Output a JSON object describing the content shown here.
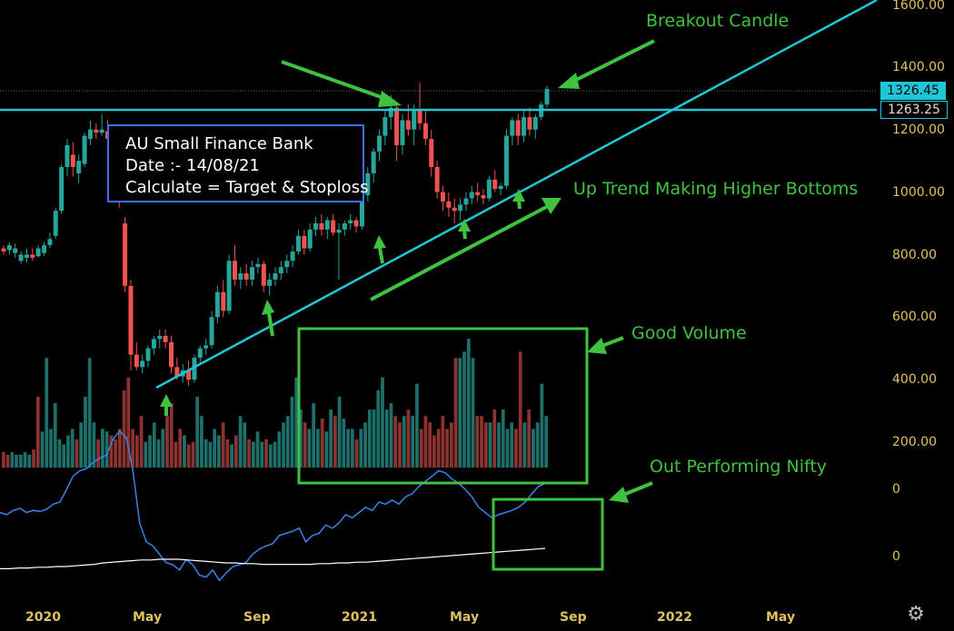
{
  "chart_data": {
    "type": "candlestick",
    "title": "AU Small Finance Bank",
    "date_label": "Date :- 14/08/21",
    "calc_label": "Calculate = Target & Stoploss",
    "y_ticks": [
      "1600.00",
      "1400.00",
      "1200.00",
      "1000.00",
      "800.00",
      "600.00",
      "400.00",
      "200.00"
    ],
    "indicator_ticks": [
      "0",
      "0"
    ],
    "x_ticks": [
      "2020",
      "May",
      "Sep",
      "2021",
      "May",
      "Sep",
      "2022",
      "May"
    ],
    "last_price": "1326.45",
    "breakout_level": "1263.25",
    "annotations": {
      "breakout": "Breakout Candle",
      "uptrend": "Up Trend Making Higher Bottoms",
      "volume": "Good Volume",
      "outperform": "Out Performing Nifty"
    },
    "colors": {
      "up": "#26a69a",
      "down": "#ef5350",
      "trendline": "#1fc6d6",
      "annotation": "#3fc23f",
      "box_border": "#3a6ff0",
      "rs_line": "#3a82e8",
      "ma_line": "#ffffff"
    },
    "candles": [
      [
        820,
        830,
        800,
        810
      ],
      [
        815,
        840,
        800,
        830
      ],
      [
        805,
        835,
        790,
        820
      ],
      [
        780,
        810,
        770,
        800
      ],
      [
        790,
        820,
        775,
        800
      ],
      [
        800,
        820,
        780,
        790
      ],
      [
        795,
        830,
        790,
        820
      ],
      [
        805,
        840,
        795,
        830
      ],
      [
        830,
        870,
        820,
        850
      ],
      [
        860,
        950,
        850,
        940
      ],
      [
        940,
        1090,
        930,
        1080
      ],
      [
        1080,
        1170,
        1050,
        1150
      ],
      [
        1120,
        1160,
        1050,
        1080
      ],
      [
        1060,
        1120,
        1030,
        1100
      ],
      [
        1090,
        1190,
        1080,
        1180
      ],
      [
        1170,
        1230,
        1150,
        1200
      ],
      [
        1200,
        1220,
        1170,
        1190
      ],
      [
        1190,
        1250,
        1180,
        1200
      ],
      [
        1195,
        1230,
        1150,
        1170
      ],
      [
        1170,
        1200,
        1070,
        1100
      ],
      [
        1100,
        1120,
        950,
        970
      ],
      [
        900,
        920,
        680,
        700
      ],
      [
        700,
        720,
        430,
        480
      ],
      [
        480,
        520,
        430,
        440
      ],
      [
        440,
        480,
        420,
        460
      ],
      [
        460,
        510,
        440,
        500
      ],
      [
        500,
        540,
        480,
        530
      ],
      [
        530,
        560,
        500,
        540
      ],
      [
        540,
        560,
        500,
        520
      ],
      [
        520,
        540,
        420,
        440
      ],
      [
        440,
        470,
        400,
        410
      ],
      [
        410,
        450,
        390,
        430
      ],
      [
        430,
        460,
        380,
        400
      ],
      [
        400,
        480,
        390,
        470
      ],
      [
        470,
        510,
        450,
        500
      ],
      [
        500,
        530,
        480,
        510
      ],
      [
        510,
        620,
        500,
        600
      ],
      [
        600,
        700,
        580,
        680
      ],
      [
        680,
        720,
        600,
        620
      ],
      [
        620,
        800,
        610,
        780
      ],
      [
        780,
        830,
        700,
        720
      ],
      [
        720,
        760,
        690,
        740
      ],
      [
        740,
        770,
        700,
        720
      ],
      [
        720,
        780,
        700,
        760
      ],
      [
        760,
        790,
        740,
        770
      ],
      [
        770,
        780,
        680,
        700
      ],
      [
        700,
        740,
        670,
        720
      ],
      [
        720,
        760,
        700,
        740
      ],
      [
        740,
        780,
        720,
        760
      ],
      [
        760,
        800,
        740,
        780
      ],
      [
        780,
        830,
        760,
        810
      ],
      [
        810,
        880,
        800,
        860
      ],
      [
        860,
        880,
        800,
        820
      ],
      [
        820,
        900,
        810,
        880
      ],
      [
        880,
        920,
        860,
        900
      ],
      [
        900,
        930,
        860,
        880
      ],
      [
        880,
        920,
        850,
        910
      ],
      [
        910,
        930,
        860,
        870
      ],
      [
        870,
        900,
        720,
        880
      ],
      [
        880,
        910,
        860,
        900
      ],
      [
        900,
        930,
        880,
        910
      ],
      [
        910,
        920,
        870,
        890
      ],
      [
        890,
        1000,
        880,
        990
      ],
      [
        990,
        1080,
        970,
        1060
      ],
      [
        1060,
        1140,
        1030,
        1130
      ],
      [
        1130,
        1200,
        1100,
        1180
      ],
      [
        1180,
        1260,
        1150,
        1240
      ],
      [
        1240,
        1310,
        1200,
        1270
      ],
      [
        1270,
        1290,
        1100,
        1150
      ],
      [
        1150,
        1250,
        1120,
        1230
      ],
      [
        1230,
        1280,
        1180,
        1200
      ],
      [
        1200,
        1280,
        1150,
        1260
      ],
      [
        1260,
        1350,
        1200,
        1220
      ],
      [
        1220,
        1260,
        1150,
        1170
      ],
      [
        1170,
        1200,
        1050,
        1080
      ],
      [
        1080,
        1100,
        980,
        1000
      ],
      [
        1000,
        1020,
        940,
        970
      ],
      [
        970,
        1000,
        920,
        950
      ],
      [
        950,
        980,
        900,
        940
      ],
      [
        940,
        980,
        910,
        960
      ],
      [
        960,
        1000,
        940,
        980
      ],
      [
        980,
        1020,
        960,
        1000
      ],
      [
        1000,
        1030,
        970,
        990
      ],
      [
        990,
        1010,
        960,
        980
      ],
      [
        980,
        1050,
        970,
        1040
      ],
      [
        1040,
        1070,
        1000,
        1010
      ],
      [
        1010,
        1030,
        990,
        1020
      ],
      [
        1020,
        1200,
        1010,
        1180
      ],
      [
        1180,
        1240,
        1150,
        1230
      ],
      [
        1230,
        1250,
        1150,
        1180
      ],
      [
        1180,
        1260,
        1160,
        1240
      ],
      [
        1240,
        1270,
        1180,
        1200
      ],
      [
        1200,
        1250,
        1170,
        1240
      ],
      [
        1240,
        1290,
        1230,
        1280
      ],
      [
        1280,
        1340,
        1270,
        1330
      ]
    ],
    "volumes": [
      0.12,
      0.1,
      0.12,
      0.1,
      0.1,
      0.12,
      0.1,
      0.14,
      0.55,
      0.28,
      0.85,
      0.3,
      0.5,
      0.22,
      0.18,
      0.25,
      0.3,
      0.22,
      0.35,
      0.55,
      0.85,
      0.35,
      0.22,
      0.3,
      0.28,
      0.25,
      0.22,
      0.3,
      0.6,
      0.7,
      0.3,
      0.25,
      0.4,
      0.2,
      0.25,
      0.35,
      0.22,
      0.3,
      0.4,
      0.5,
      0.2,
      0.3,
      0.25,
      0.18,
      0.2,
      0.55,
      0.4,
      0.22,
      0.2,
      0.3,
      0.25,
      0.35,
      0.22,
      0.18,
      0.25,
      0.4,
      0.35,
      0.22,
      0.2,
      0.28,
      0.2,
      0.22,
      0.18,
      0.2,
      0.28,
      0.35,
      0.4,
      0.55,
      0.7,
      0.45,
      0.35,
      0.3,
      0.5,
      0.3,
      0.38,
      0.28,
      0.45,
      0.4,
      0.55,
      0.38,
      0.3,
      0.3,
      0.22,
      0.3,
      0.35,
      0.45,
      0.45,
      0.6,
      0.7,
      0.45,
      0.5,
      0.4,
      0.35,
      0.4,
      0.45,
      0.4,
      0.65,
      0.3,
      0.4,
      0.35,
      0.25,
      0.3,
      0.4,
      0.3,
      0.35,
      0.85,
      0.85,
      0.9,
      1.0,
      0.85,
      0.4,
      0.4,
      0.35,
      0.35,
      0.45,
      0.35,
      0.45,
      0.3,
      0.35,
      0.3,
      0.9,
      0.35,
      0.45,
      0.3,
      0.35,
      0.65,
      0.4
    ],
    "rs_line": [
      0.7,
      0.68,
      0.72,
      0.74,
      0.7,
      0.72,
      0.71,
      0.73,
      0.78,
      0.8,
      0.92,
      1.05,
      1.1,
      1.12,
      1.18,
      1.22,
      1.25,
      1.4,
      1.48,
      1.42,
      1.1,
      0.6,
      0.42,
      0.38,
      0.3,
      0.22,
      0.2,
      0.15,
      0.25,
      0.2,
      0.1,
      0.08,
      0.15,
      0.05,
      0.12,
      0.18,
      0.2,
      0.22,
      0.3,
      0.35,
      0.38,
      0.4,
      0.48,
      0.5,
      0.52,
      0.55,
      0.42,
      0.48,
      0.5,
      0.58,
      0.55,
      0.6,
      0.68,
      0.65,
      0.7,
      0.75,
      0.72,
      0.8,
      0.78,
      0.82,
      0.78,
      0.85,
      0.88,
      0.95,
      1.0,
      1.05,
      1.1,
      1.08,
      1.02,
      0.98,
      0.92,
      0.85,
      0.75,
      0.7,
      0.65,
      0.68,
      0.7,
      0.72,
      0.75,
      0.8,
      0.88,
      0.95,
      0.98
    ],
    "ma_line": [
      0.42,
      0.42,
      0.43,
      0.43,
      0.44,
      0.44,
      0.45,
      0.45,
      0.46,
      0.47,
      0.48,
      0.5,
      0.51,
      0.52,
      0.53,
      0.54,
      0.54,
      0.55,
      0.55,
      0.55,
      0.54,
      0.53,
      0.52,
      0.51,
      0.5,
      0.5,
      0.49,
      0.49,
      0.48,
      0.48,
      0.48,
      0.48,
      0.48,
      0.48,
      0.49,
      0.49,
      0.5,
      0.5,
      0.51,
      0.51,
      0.52,
      0.53,
      0.54,
      0.55,
      0.56,
      0.57,
      0.58,
      0.59,
      0.6,
      0.61,
      0.62,
      0.63,
      0.64,
      0.65,
      0.66,
      0.67,
      0.68,
      0.69,
      0.7
    ]
  }
}
